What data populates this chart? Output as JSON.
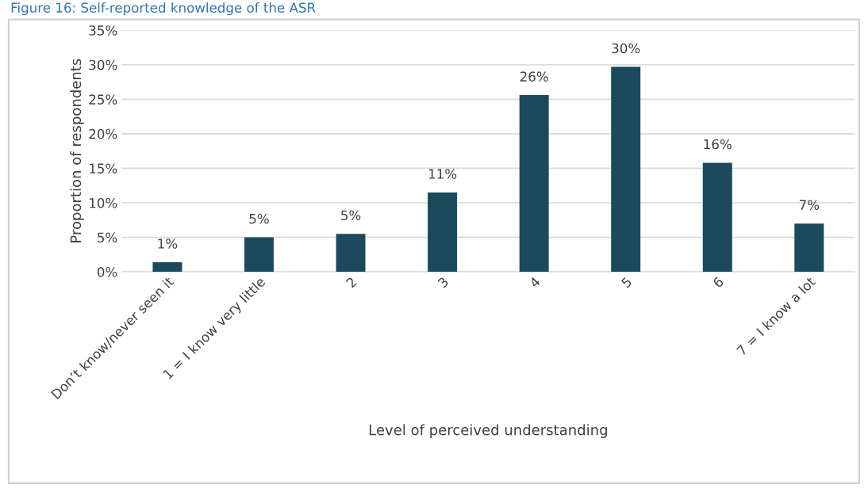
{
  "chart_data": {
    "type": "bar",
    "title": "Figure 16: Self-reported knowledge of the ASR",
    "categories": [
      "Don’t know/never seen it",
      "1 = I know very little",
      "2",
      "3",
      "4",
      "5",
      "6",
      "7 = I know a lot"
    ],
    "values": [
      1.4,
      5.0,
      5.5,
      11.5,
      25.6,
      29.7,
      15.8,
      7.0
    ],
    "value_labels": [
      "1%",
      "5%",
      "5%",
      "11%",
      "26%",
      "30%",
      "16%",
      "7%"
    ],
    "color": "#1a4a5c",
    "xlabel": "Level of perceived understanding",
    "ylabel": "Proportion of respondents",
    "ylim": [
      0,
      35
    ],
    "yticks": [
      {
        "value": 0,
        "label": "0%"
      },
      {
        "value": 5,
        "label": "5%"
      },
      {
        "value": 10,
        "label": "10%"
      },
      {
        "value": 15,
        "label": "15%"
      },
      {
        "value": 20,
        "label": "20%"
      },
      {
        "value": 25,
        "label": "25%"
      },
      {
        "value": 30,
        "label": "30%"
      },
      {
        "value": 35,
        "label": "35%"
      }
    ],
    "grid": "y"
  }
}
